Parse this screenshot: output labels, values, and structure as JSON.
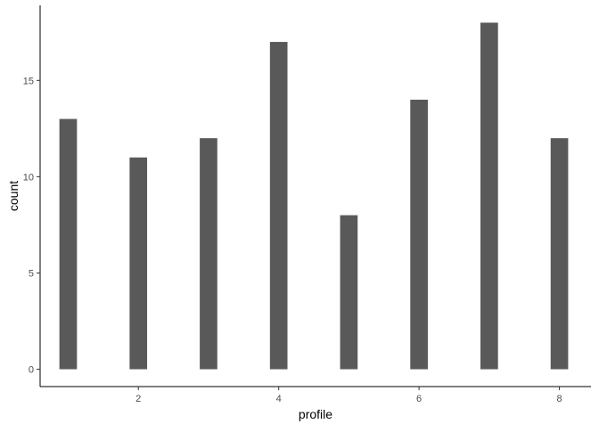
{
  "chart_data": {
    "type": "bar",
    "title": "",
    "xlabel": "profile",
    "ylabel": "count",
    "x": [
      1,
      2,
      3,
      4,
      5,
      6,
      7,
      8
    ],
    "values": [
      13,
      11,
      12,
      17,
      8,
      14,
      18,
      12
    ],
    "xlim": [
      0.6,
      8.45
    ],
    "ylim": [
      -0.9,
      18.9
    ],
    "x_ticks": [
      2,
      4,
      6,
      8
    ],
    "x_tick_labels": [
      "2",
      "4",
      "6",
      "8"
    ],
    "y_ticks": [
      0,
      5,
      10,
      15
    ],
    "y_tick_labels": [
      "0",
      "5",
      "10",
      "15"
    ],
    "bar_width": 0.25,
    "bar_color": "#595959",
    "grid": false,
    "legend": "none"
  }
}
